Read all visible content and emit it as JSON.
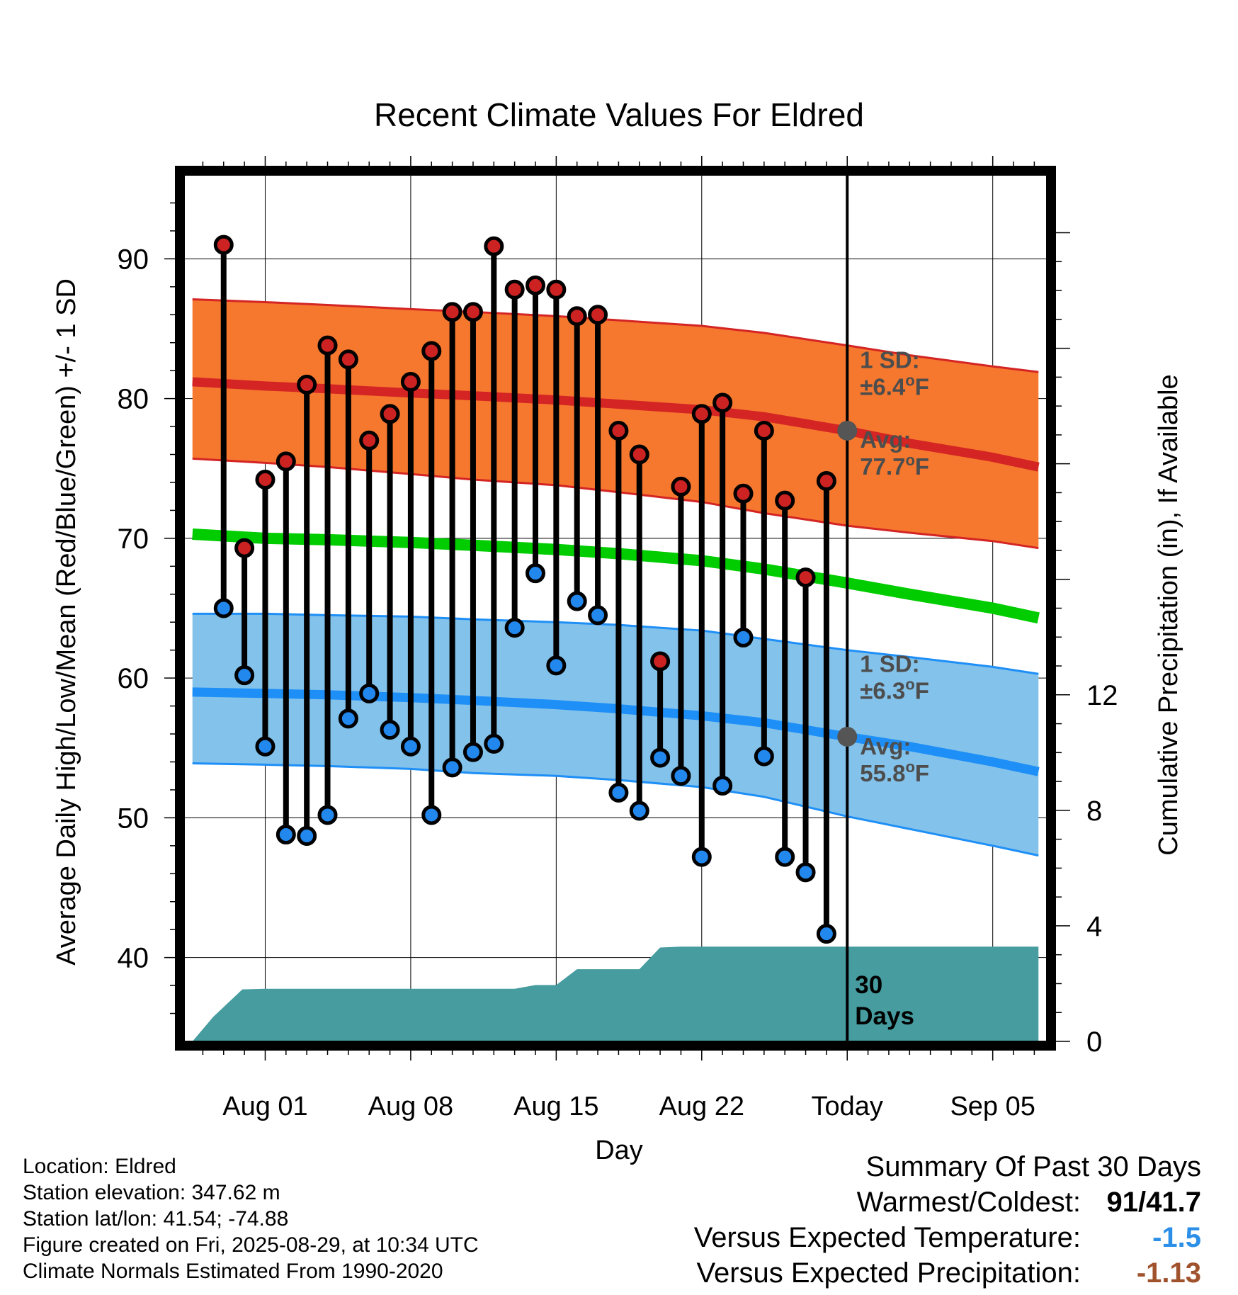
{
  "chart_data": {
    "type": "line",
    "title": "Recent Climate Values For Eldred",
    "xlabel": "Day",
    "ylabel": "Average Daily High/Low/Mean (Red/Blue/Green) +/- 1 SD",
    "y2label": "Cumulative Precipitation (in), If Available",
    "ylim": [
      34,
      96
    ],
    "y2lim": [
      0,
      30
    ],
    "y_ticks": [
      40,
      50,
      60,
      70,
      80,
      90
    ],
    "y2_ticks": [
      0,
      4,
      8,
      12
    ],
    "xlim": [
      -3.9,
      37.6
    ],
    "x_ticks": [
      {
        "day": 0,
        "label": "Aug 01"
      },
      {
        "day": 7,
        "label": "Aug 08"
      },
      {
        "day": 14,
        "label": "Aug 15"
      },
      {
        "day": 21,
        "label": "Aug 22"
      },
      {
        "day": 28,
        "label": "Today"
      },
      {
        "day": 35,
        "label": "Sep 05"
      }
    ],
    "today_day": 28,
    "today_label": "30 Days",
    "days": [
      -2,
      -1,
      0,
      1,
      2,
      3,
      4,
      5,
      6,
      7,
      8,
      9,
      10,
      11,
      12,
      13,
      14,
      15,
      16,
      17,
      18,
      19,
      20,
      21,
      22,
      23,
      24,
      25,
      26,
      27
    ],
    "highs": [
      91.0,
      69.3,
      74.2,
      75.5,
      81.0,
      83.8,
      82.8,
      77.0,
      78.9,
      81.2,
      83.4,
      86.2,
      86.2,
      90.9,
      87.8,
      88.1,
      87.8,
      85.9,
      86.0,
      77.7,
      76.0,
      61.2,
      73.7,
      78.9,
      79.7,
      73.2,
      77.7,
      72.7,
      67.2,
      74.1
    ],
    "lows": [
      65.0,
      60.2,
      55.1,
      48.8,
      48.7,
      50.2,
      57.1,
      58.9,
      56.3,
      55.1,
      50.2,
      53.6,
      54.7,
      55.3,
      63.6,
      67.5,
      60.9,
      65.5,
      64.5,
      51.8,
      50.5,
      54.3,
      53.0,
      47.2,
      52.3,
      62.9,
      54.4,
      47.2,
      46.1,
      41.7
    ],
    "normal_days": [
      -3.5,
      0,
      3,
      7,
      10,
      14,
      17,
      21,
      24,
      28,
      31,
      35,
      37.2
    ],
    "normal_high": [
      81.2,
      80.9,
      80.7,
      80.4,
      80.2,
      79.9,
      79.6,
      79.2,
      78.7,
      77.7,
      76.8,
      75.8,
      75.1
    ],
    "normal_high_upper": [
      87.1,
      86.9,
      86.7,
      86.4,
      86.2,
      85.9,
      85.6,
      85.2,
      84.7,
      83.8,
      83.1,
      82.3,
      81.9
    ],
    "normal_high_lower": [
      75.7,
      75.4,
      75.1,
      74.6,
      74.2,
      73.8,
      73.3,
      72.6,
      71.8,
      70.9,
      70.4,
      69.8,
      69.3
    ],
    "normal_mean": [
      70.3,
      70.0,
      69.9,
      69.7,
      69.5,
      69.2,
      68.9,
      68.4,
      67.8,
      66.8,
      66.0,
      65.0,
      64.3
    ],
    "normal_low": [
      59.0,
      58.9,
      58.8,
      58.6,
      58.4,
      58.1,
      57.8,
      57.3,
      56.8,
      55.8,
      55.1,
      54.0,
      53.3
    ],
    "normal_low_upper": [
      64.6,
      64.6,
      64.5,
      64.4,
      64.2,
      64.0,
      63.8,
      63.4,
      62.8,
      62.0,
      61.5,
      60.8,
      60.3
    ],
    "normal_low_lower": [
      53.9,
      53.8,
      53.7,
      53.5,
      53.2,
      53.0,
      52.7,
      52.2,
      51.5,
      50.1,
      49.2,
      48.0,
      47.3
    ],
    "precip_days": [
      -3.5,
      -2.5,
      -1.1,
      0,
      12.0,
      13.0,
      14.0,
      15.0,
      18.0,
      19.0,
      20.0,
      28,
      37.2
    ],
    "precip_cum": [
      0.0,
      0.85,
      1.8,
      1.82,
      1.82,
      1.95,
      1.95,
      2.5,
      2.5,
      3.25,
      3.28,
      3.28,
      3.28
    ],
    "annotations": {
      "high_sd": {
        "label": "1 SD:",
        "value": "±6.4",
        "unit": "oF"
      },
      "high_avg": {
        "label": "Avg:",
        "value": "77.7",
        "unit": "oF"
      },
      "low_sd": {
        "label": "1 SD:",
        "value": "±6.3",
        "unit": "oF"
      },
      "low_avg": {
        "label": "Avg:",
        "value": "55.8",
        "unit": "oF"
      }
    },
    "colors": {
      "high_band": "#f5782e",
      "high_line": "#d42424",
      "low_band": "#83c2ea",
      "low_line": "#1e8ff7",
      "mean_line": "#00cc00",
      "precip": "#469c9f",
      "high_marker": "#cc2222",
      "low_marker": "#2288ee",
      "avg_marker": "#555555",
      "annotation_text": "#4d4d4d"
    }
  },
  "footer": {
    "location": "Location: Eldred",
    "elevation": "Station elevation: 347.62 m",
    "latlon": "Station lat/lon: 41.54; -74.88",
    "created": "Figure created on Fri, 2025-08-29, at 10:34 UTC",
    "normals": "Climate Normals Estimated From 1990-2020"
  },
  "summary": {
    "title": "Summary Of Past 30 Days",
    "warmest_label": "Warmest/Coldest:",
    "warmest_value": "91",
    "coldest_value": "41.7",
    "temp_label": "Versus Expected Temperature:",
    "temp_value": "-1.5",
    "precip_label": "Versus Expected Precipitation:",
    "precip_value": "-1.13",
    "temp_color": "#2b8fe8",
    "precip_color": "#a0522d"
  }
}
